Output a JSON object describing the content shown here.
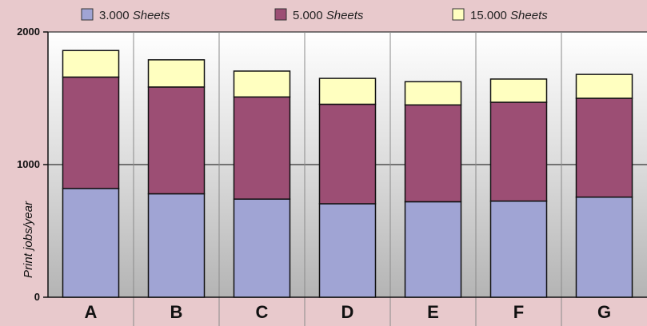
{
  "chart_data": {
    "type": "bar",
    "stacked": true,
    "categories": [
      "A",
      "B",
      "C",
      "D",
      "E",
      "F",
      "G"
    ],
    "series": [
      {
        "name": "3.000",
        "unit": "Sheets",
        "color": "#a0a4d4",
        "values": [
          820,
          780,
          740,
          705,
          720,
          725,
          755
        ]
      },
      {
        "name": "5.000",
        "unit": "Sheets",
        "color": "#9c4e74",
        "values": [
          840,
          805,
          770,
          750,
          730,
          745,
          745
        ]
      },
      {
        "name": "15.000",
        "unit": "Sheets",
        "color": "#ffffc0",
        "values": [
          200,
          205,
          195,
          195,
          175,
          175,
          180
        ]
      }
    ],
    "ylabel": "Print jobs/year",
    "xlabel": "",
    "title": "",
    "yticks": [
      0,
      1000,
      2000
    ],
    "ylim": [
      0,
      2000
    ],
    "legend_position": "top",
    "grid": true
  }
}
